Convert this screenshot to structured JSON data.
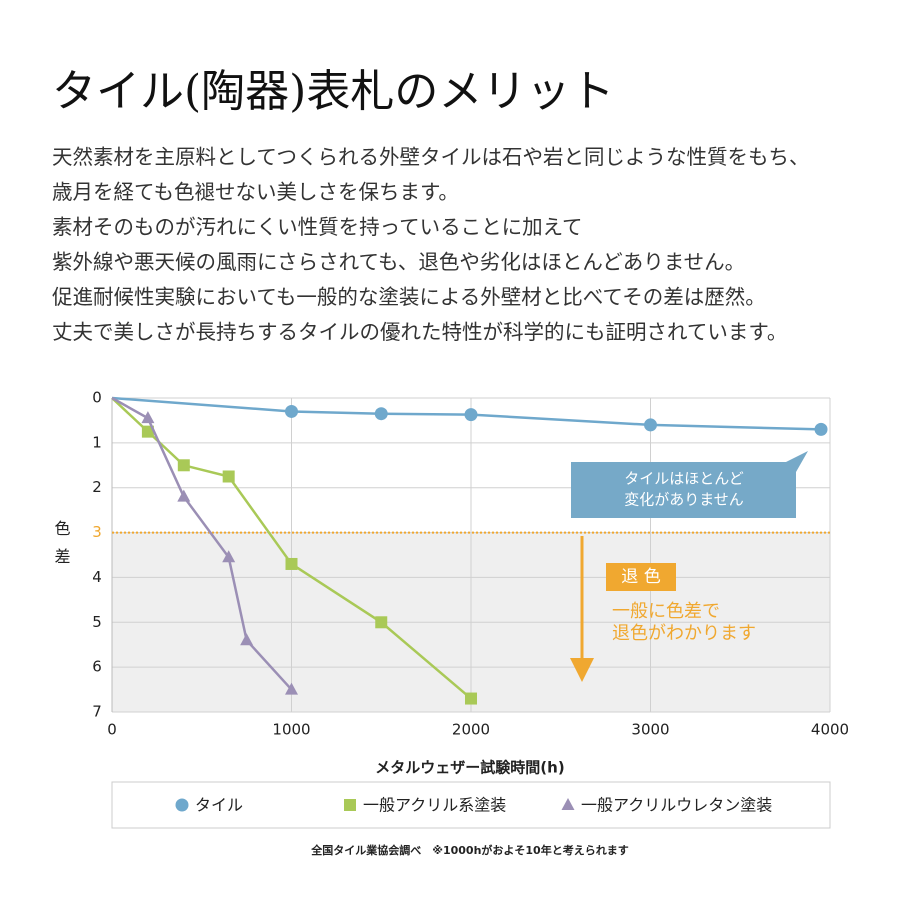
{
  "title": "タイル(陶器)表札のメリット",
  "description": [
    "天然素材を主原料としてつくられる外壁タイルは石や岩と同じような性質をもち、",
    "歳月を経ても色褪せない美しさを保ちます。",
    "素材そのものが汚れにくい性質を持っていることに加えて",
    "紫外線や悪天候の風雨にさらされても、退色や劣化はほとんどありません。",
    "促進耐候性実験においても一般的な塗装による外壁材と比べてその差は歴然。",
    "丈夫で美しさが長持ちするタイルの優れた特性が科学的にも証明されています。"
  ],
  "chart_data": {
    "type": "line",
    "x_label": "メタルウェザー試験時間(h)",
    "y_label": "色差",
    "xlim": [
      0,
      4000
    ],
    "xticks": [
      0,
      1000,
      2000,
      3000,
      4000
    ],
    "ylim": [
      0,
      7
    ],
    "yticks": [
      0,
      1,
      2,
      3,
      4,
      5,
      6,
      7
    ],
    "y_inverted": true,
    "grid": true,
    "threshold": 3,
    "threshold_color": "#f0a830",
    "series": [
      {
        "name": "タイル",
        "color": "#6fa8cc",
        "marker": "circle",
        "x": [
          0,
          1000,
          1500,
          2000,
          3000,
          3950
        ],
        "values": [
          0,
          0.3,
          0.35,
          0.37,
          0.6,
          0.7
        ]
      },
      {
        "name": "一般アクリル系塗装",
        "color": "#a9c957",
        "marker": "square",
        "x": [
          0,
          200,
          400,
          650,
          1000,
          1500,
          2000
        ],
        "values": [
          0,
          0.75,
          1.5,
          1.75,
          3.7,
          5.0,
          6.7
        ]
      },
      {
        "name": "一般アクリルウレタン塗装",
        "color": "#9b8fb5",
        "marker": "triangle",
        "x": [
          0,
          200,
          400,
          650,
          750,
          1000
        ],
        "values": [
          0,
          0.45,
          2.2,
          3.55,
          5.4,
          6.5
        ]
      }
    ],
    "annotations": {
      "tile_note": [
        "タイルはほとんど",
        "変化がありません"
      ],
      "fade_label": "退 色",
      "fade_note": [
        "一般に色差で",
        "退色がわかります"
      ]
    },
    "source": "全国タイル業協会調べ　※1000hがおよそ10年と考えられます"
  }
}
